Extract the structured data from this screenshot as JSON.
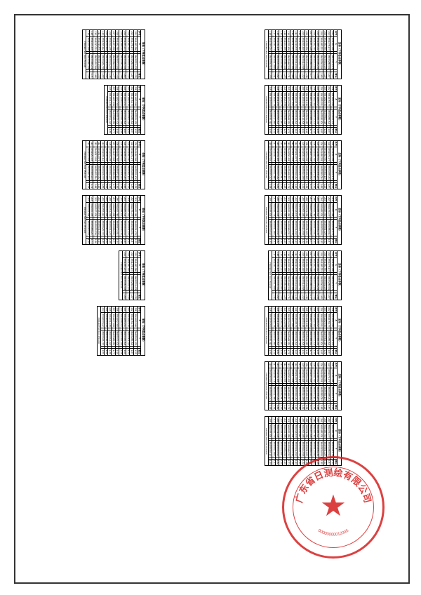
{
  "stamp": {
    "company_text": "广东省日测绘有限公司",
    "bottom_code": "00000000012345",
    "star": "★",
    "color": "#d62020"
  },
  "table_defaults": {
    "title": "坐标（下列各点参数）",
    "headers": [
      "序号",
      "X",
      "",
      "Y",
      "",
      "备注"
    ],
    "footer_app": "PROJECTED from 4511330",
    "sample_rows": [
      [
        "J01",
        "3941482.286",
        "",
        "38455221.476",
        "",
        "1.25"
      ],
      [
        "J02",
        "3941476.175",
        "",
        "38455286.001",
        "",
        "1.87"
      ],
      [
        "J03",
        "3941482.530",
        "",
        "38455301.125",
        "",
        "1.22"
      ],
      [
        "J04",
        "3941485.201",
        "",
        "38455330.004",
        "",
        "1.65"
      ],
      [
        "J05",
        "3941488.002",
        "",
        "38455356.234",
        "",
        "1.98"
      ],
      [
        "J06",
        "3941492.765",
        "",
        "38455372.101",
        "",
        "1.44"
      ],
      [
        "J07",
        "3941497.008",
        "",
        "38455388.552",
        "",
        "1.77"
      ],
      [
        "J08",
        "3941501.236",
        "",
        "38455401.225",
        "",
        "1.36"
      ],
      [
        "J09",
        "3941505.448",
        "",
        "38455414.908",
        "",
        "1.52"
      ],
      [
        "J10",
        "3941509.112",
        "",
        "38455428.755",
        "",
        "1.89"
      ],
      [
        "J11",
        "3941513.876",
        "",
        "38455441.002",
        "",
        "1.14"
      ],
      [
        "J12",
        "3941517.001",
        "",
        "38455455.334",
        "",
        "1.66"
      ],
      [
        "J13",
        "3941520.458",
        "",
        "38455468.221",
        "",
        "1.71"
      ],
      [
        "J14",
        "3941524.998",
        "",
        "38455480.104",
        "",
        "1.29"
      ],
      [
        "J15",
        "3941528.223",
        "",
        "38455492.887",
        "",
        "1.55"
      ],
      [
        "J16",
        "3941531.106",
        "",
        "38455505.002",
        "",
        "1.82"
      ],
      [
        "J17",
        "3941535.778",
        "",
        "38455517.665",
        "",
        "1.41"
      ],
      [
        "J18",
        "3941539.004",
        "",
        "38455530.012",
        "",
        "1.93"
      ]
    ]
  },
  "top_cluster": {
    "tables": 8,
    "row_counts": [
      18,
      18,
      18,
      18,
      17,
      18,
      18,
      18
    ]
  },
  "bottom_cluster": {
    "tables": 6,
    "row_counts": [
      14,
      8,
      14,
      14,
      4,
      10
    ]
  }
}
